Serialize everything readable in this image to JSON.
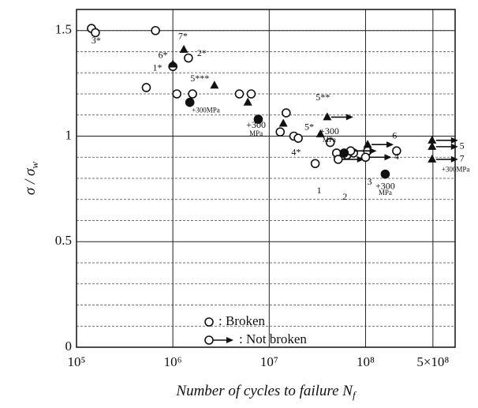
{
  "chart_data": {
    "type": "scatter",
    "xlabel": "Number of cycles to failure N",
    "xlabel_sub": "f",
    "ylabel": "σ / σ",
    "ylabel_sub": "w",
    "xscale": "log",
    "xlim": [
      100000,
      850000000
    ],
    "xticks": [
      {
        "value": 100000,
        "label": "10⁵"
      },
      {
        "value": 1000000,
        "label": "10⁶"
      },
      {
        "value": 10000000,
        "label": "10⁷"
      },
      {
        "value": 100000000,
        "label": "10⁸"
      },
      {
        "value": 500000000,
        "label": "5×10⁸"
      }
    ],
    "ylim": [
      0,
      1.6
    ],
    "yticks": [
      0,
      0.5,
      1,
      1.5
    ],
    "ygrid_minor": [
      0.1,
      0.2,
      0.3,
      0.4,
      0.6,
      0.7,
      0.8,
      0.9,
      1.1,
      1.2,
      1.3,
      1.4,
      1.5,
      1.6
    ],
    "color": "#111111",
    "series": [
      {
        "marker": "open-circle",
        "runout": false,
        "x": [
          143000,
          157000,
          660000,
          1000000,
          1450000,
          530000,
          1100000,
          1600000,
          4900000,
          6500000,
          13000000,
          15000000,
          18000000,
          20000000,
          43000000,
          30000000,
          50000000,
          64000000,
          75000000,
          105000000,
          210000000
        ],
        "values": [
          1.51,
          1.49,
          1.5,
          1.33,
          1.37,
          1.23,
          1.2,
          1.2,
          1.2,
          1.2,
          1.02,
          1.11,
          1.0,
          0.99,
          0.97,
          0.87,
          0.92,
          0.91,
          0.92,
          0.93,
          0.93
        ]
      },
      {
        "marker": "open-circle",
        "runout": true,
        "x": [
          52000000,
          70000000,
          100000000
        ],
        "values": [
          0.89,
          0.93,
          0.9
        ]
      },
      {
        "marker": "filled-circle",
        "runout": false,
        "x": [
          1500000,
          7700000,
          60000000,
          160000000
        ],
        "values": [
          1.16,
          1.08,
          0.92,
          0.82
        ]
      },
      {
        "marker": "triangle",
        "runout": false,
        "x": [
          1000000,
          1300000,
          2700000,
          6000000,
          14000000,
          34000000
        ],
        "values": [
          1.34,
          1.41,
          1.24,
          1.16,
          1.06,
          1.01
        ]
      },
      {
        "marker": "triangle",
        "runout": true,
        "x": [
          40000000,
          105000000,
          490000000,
          490000000,
          490000000
        ],
        "values": [
          1.09,
          0.96,
          0.98,
          0.95,
          0.89
        ]
      }
    ],
    "legend": [
      {
        "label": ": Broken",
        "marker": "open-circle",
        "runout": false
      },
      {
        "label": ": Not broken",
        "marker": "open-circle",
        "runout": true
      }
    ],
    "annotations": [
      {
        "text": "3*",
        "x": 160000,
        "y": 1.45
      },
      {
        "text": "1*",
        "x": 690000,
        "y": 1.32
      },
      {
        "text": "6*",
        "x": 790000,
        "y": 1.38
      },
      {
        "text": "7*",
        "x": 1270000,
        "y": 1.47
      },
      {
        "text": "2*",
        "x": 2000000,
        "y": 1.39
      },
      {
        "text": "5***",
        "x": 1900000,
        "y": 1.27
      },
      {
        "text": "+300MPa",
        "x": 2200000,
        "y": 1.12
      },
      {
        "text": "+300",
        "x": 7300000,
        "y": 1.05
      },
      {
        "text": "MPa",
        "x": 7300000,
        "y": 1.01
      },
      {
        "text": "5**",
        "x": 36000000,
        "y": 1.18
      },
      {
        "text": "5*",
        "x": 26000000,
        "y": 1.04
      },
      {
        "text": "4*",
        "x": 19000000,
        "y": 0.92
      },
      {
        "text": "+300",
        "x": 42000000,
        "y": 1.02
      },
      {
        "text": "MPa",
        "x": 42000000,
        "y": 0.98
      },
      {
        "text": "6",
        "x": 200000000,
        "y": 1.0
      },
      {
        "text": "4",
        "x": 210000000,
        "y": 0.9
      },
      {
        "text": "3",
        "x": 110000000,
        "y": 0.78
      },
      {
        "text": "1",
        "x": 33000000,
        "y": 0.74
      },
      {
        "text": "2",
        "x": 61000000,
        "y": 0.71
      },
      {
        "text": "+300",
        "x": 160000000,
        "y": 0.76
      },
      {
        "text": "MPa",
        "x": 160000000,
        "y": 0.73
      },
      {
        "text": "5",
        "x": 1000000000,
        "y": 0.95
      },
      {
        "text": "7",
        "x": 1000000000,
        "y": 0.89
      },
      {
        "text": "+300MPa",
        "x": 860000000,
        "y": 0.84
      }
    ]
  }
}
